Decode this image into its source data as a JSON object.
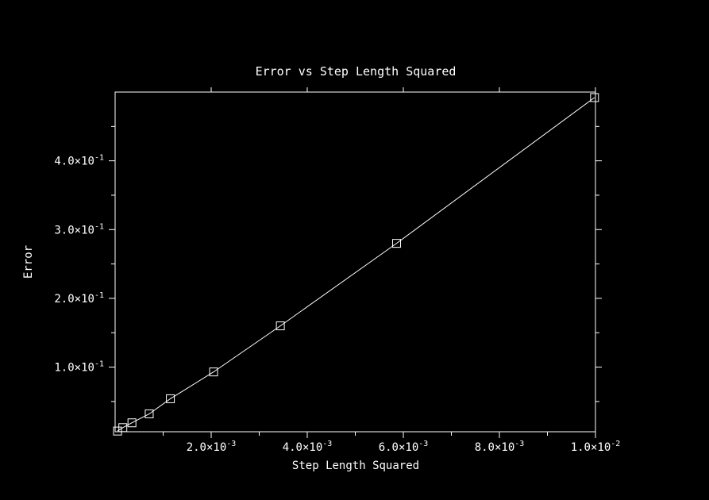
{
  "chart_data": {
    "type": "line",
    "title": "Error vs Step Length Squared",
    "xlabel": "Step Length Squared",
    "ylabel": "Error",
    "xlim": [
      0.0,
      0.01
    ],
    "ylim": [
      0.006,
      0.5
    ],
    "x_ticks": [
      {
        "value": 0.002,
        "mant": "2.0",
        "exp": "-3"
      },
      {
        "value": 0.004,
        "mant": "4.0",
        "exp": "-3"
      },
      {
        "value": 0.006,
        "mant": "6.0",
        "exp": "-3"
      },
      {
        "value": 0.008,
        "mant": "8.0",
        "exp": "-3"
      },
      {
        "value": 0.01,
        "mant": "1.0",
        "exp": "-2"
      }
    ],
    "y_ticks": [
      {
        "value": 0.1,
        "mant": "1.0",
        "exp": "-1"
      },
      {
        "value": 0.2,
        "mant": "2.0",
        "exp": "-1"
      },
      {
        "value": 0.3,
        "mant": "3.0",
        "exp": "-1"
      },
      {
        "value": 0.4,
        "mant": "4.0",
        "exp": "-1"
      }
    ],
    "x_minor": [
      0.001,
      0.003,
      0.005,
      0.007,
      0.009
    ],
    "y_minor": [
      0.05,
      0.15,
      0.25,
      0.35,
      0.45
    ],
    "series": [
      {
        "x": [
          5e-05,
          0.00016,
          0.00035,
          0.00071,
          0.00115,
          0.00205,
          0.00344,
          0.00586,
          0.00998
        ],
        "y": [
          0.007,
          0.012,
          0.019,
          0.032,
          0.054,
          0.093,
          0.16,
          0.28,
          0.492
        ],
        "marker": "square"
      }
    ],
    "grid": false,
    "colors": {
      "background": "#000000",
      "foreground": "#ffffff"
    }
  }
}
